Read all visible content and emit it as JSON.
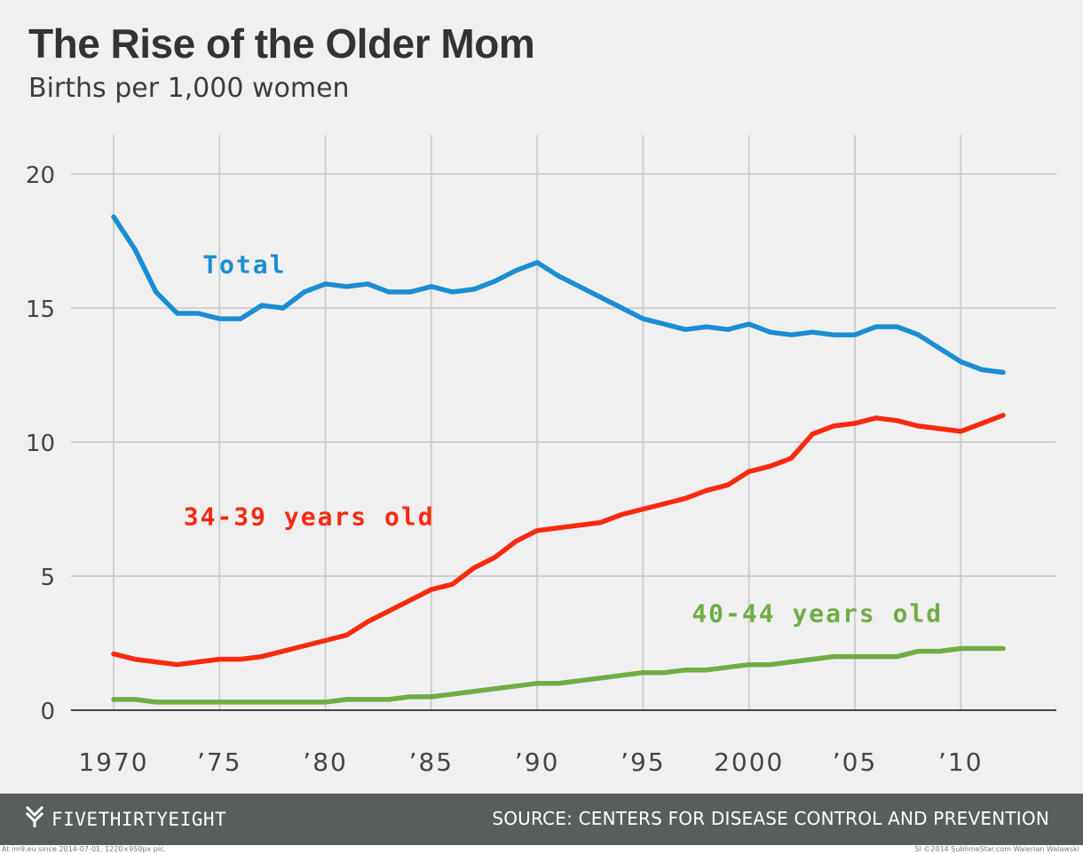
{
  "header": {
    "title": "The Rise of the Older Mom",
    "subtitle": "Births per 1,000 women"
  },
  "chart_data": {
    "type": "line",
    "title": "The Rise of the Older Mom",
    "subtitle": "Births per 1,000 women",
    "xlabel": "",
    "ylabel": "",
    "xlim": [
      1970,
      2012
    ],
    "ylim": [
      0,
      20
    ],
    "grid": true,
    "x_ticks": [
      1970,
      1975,
      1980,
      1985,
      1990,
      1995,
      2000,
      2005,
      2010
    ],
    "x_tick_labels": [
      "1970",
      "’75",
      "’80",
      "’85",
      "’90",
      "’95",
      "2000",
      "’05",
      "’10"
    ],
    "y_ticks": [
      0,
      5,
      10,
      15,
      20
    ],
    "y_tick_labels": [
      "0",
      "5",
      "10",
      "15",
      "20"
    ],
    "x": [
      1970,
      1971,
      1972,
      1973,
      1974,
      1975,
      1976,
      1977,
      1978,
      1979,
      1980,
      1981,
      1982,
      1983,
      1984,
      1985,
      1986,
      1987,
      1988,
      1989,
      1990,
      1991,
      1992,
      1993,
      1994,
      1995,
      1996,
      1997,
      1998,
      1999,
      2000,
      2001,
      2002,
      2003,
      2004,
      2005,
      2006,
      2007,
      2008,
      2009,
      2010,
      2011,
      2012
    ],
    "series": [
      {
        "name": "Total",
        "color": "#1a8dd3",
        "values": [
          18.4,
          17.2,
          15.6,
          14.8,
          14.8,
          14.6,
          14.6,
          15.1,
          15.0,
          15.6,
          15.9,
          15.8,
          15.9,
          15.6,
          15.6,
          15.8,
          15.6,
          15.7,
          16.0,
          16.4,
          16.7,
          16.2,
          15.8,
          15.4,
          15.0,
          14.6,
          14.4,
          14.2,
          14.3,
          14.2,
          14.4,
          14.1,
          14.0,
          14.1,
          14.0,
          14.0,
          14.3,
          14.3,
          14.0,
          13.5,
          13.0,
          12.7,
          12.6
        ]
      },
      {
        "name": "34-39 years old",
        "color": "#f72a10",
        "values": [
          2.1,
          1.9,
          1.8,
          1.7,
          1.8,
          1.9,
          1.9,
          2.0,
          2.2,
          2.4,
          2.6,
          2.8,
          3.3,
          3.7,
          4.1,
          4.5,
          4.7,
          5.3,
          5.7,
          6.3,
          6.7,
          6.8,
          6.9,
          7.0,
          7.3,
          7.5,
          7.7,
          7.9,
          8.2,
          8.4,
          8.9,
          9.1,
          9.4,
          10.3,
          10.6,
          10.7,
          10.9,
          10.8,
          10.6,
          10.5,
          10.4,
          10.7,
          11.0
        ]
      },
      {
        "name": "40-44 years old",
        "color": "#6fad44",
        "values": [
          0.4,
          0.4,
          0.3,
          0.3,
          0.3,
          0.3,
          0.3,
          0.3,
          0.3,
          0.3,
          0.3,
          0.4,
          0.4,
          0.4,
          0.5,
          0.5,
          0.6,
          0.7,
          0.8,
          0.9,
          1.0,
          1.0,
          1.1,
          1.2,
          1.3,
          1.4,
          1.4,
          1.5,
          1.5,
          1.6,
          1.7,
          1.7,
          1.8,
          1.9,
          2.0,
          2.0,
          2.0,
          2.0,
          2.2,
          2.2,
          2.3,
          2.3,
          2.3
        ]
      }
    ],
    "series_labels": [
      {
        "text": "Total",
        "color": "#1a8dd3",
        "anchor_x": 1974.2,
        "anchor_y": 16.3
      },
      {
        "text": "34-39 years old",
        "color": "#f72a10",
        "anchor_x": 1973.3,
        "anchor_y": 6.9
      },
      {
        "text": "40-44 years old",
        "color": "#6fad44",
        "anchor_x": 1997.3,
        "anchor_y": 3.3
      }
    ]
  },
  "footer": {
    "brand": "FIVETHIRTYEIGHT",
    "source": "SOURCE: CENTERS FOR DISEASE CONTROL AND PREVENTION"
  },
  "credits": {
    "left": "At im9.eu since 2014-07-01, 1220×950px pic.",
    "right": "SI ©2014 SublimeStar.com Walerian Walawski"
  }
}
